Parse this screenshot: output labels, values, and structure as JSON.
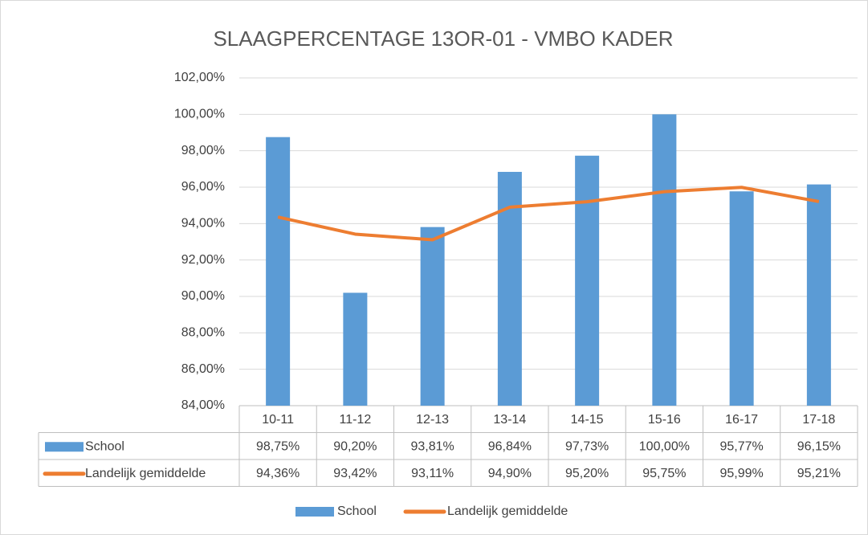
{
  "chart_data": {
    "type": "bar",
    "title": "SLAAGPERCENTAGE 13OR-01 - VMBO KADER",
    "categories": [
      "10-11",
      "11-12",
      "12-13",
      "13-14",
      "14-15",
      "15-16",
      "16-17",
      "17-18"
    ],
    "series": [
      {
        "name": "School",
        "type": "bar",
        "color": "#5b9bd5",
        "values": [
          98.75,
          90.2,
          93.81,
          96.84,
          97.73,
          100.0,
          95.77,
          96.15
        ],
        "value_labels": [
          "98,75%",
          "90,20%",
          "93,81%",
          "96,84%",
          "97,73%",
          "100,00%",
          "95,77%",
          "96,15%"
        ]
      },
      {
        "name": "Landelijk gemiddelde",
        "type": "line",
        "color": "#ed7d31",
        "values": [
          94.36,
          93.42,
          93.11,
          94.9,
          95.2,
          95.75,
          95.99,
          95.21
        ],
        "value_labels": [
          "94,36%",
          "93,42%",
          "93,11%",
          "94,90%",
          "95,20%",
          "95,75%",
          "95,99%",
          "95,21%"
        ]
      }
    ],
    "ylim": [
      84,
      102
    ],
    "yticks": [
      {
        "value": 84,
        "label": "84,00%"
      },
      {
        "value": 86,
        "label": "86,00%"
      },
      {
        "value": 88,
        "label": "88,00%"
      },
      {
        "value": 90,
        "label": "90,00%"
      },
      {
        "value": 92,
        "label": "92,00%"
      },
      {
        "value": 94,
        "label": "94,00%"
      },
      {
        "value": 96,
        "label": "96,00%"
      },
      {
        "value": 98,
        "label": "98,00%"
      },
      {
        "value": 100,
        "label": "100,00%"
      },
      {
        "value": 102,
        "label": "102,00%"
      }
    ],
    "grid": true,
    "legend": "bottom"
  }
}
